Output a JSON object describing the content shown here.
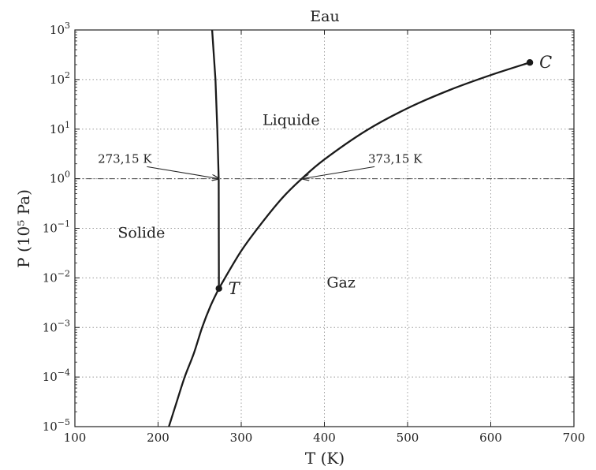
{
  "chart_data": {
    "type": "line",
    "title": "Eau",
    "xlabel": "T (K)",
    "ylabel": "P (10⁵ Pa)",
    "xlim": [
      100,
      700
    ],
    "ylim_log10": [
      -5,
      3
    ],
    "y_scale": "log",
    "grid": true,
    "x_ticks": [
      100,
      200,
      300,
      400,
      500,
      600,
      700
    ],
    "x_tick_labels": [
      "100",
      "200",
      "300",
      "400",
      "500",
      "600",
      "700"
    ],
    "y_ticks_exponents": [
      -5,
      -4,
      -3,
      -2,
      -1,
      0,
      1,
      2,
      3
    ],
    "y_tick_base": "10",
    "series": [
      {
        "kind": "fusion",
        "points": [
          [
            273.16,
            0.00612
          ],
          [
            272.9,
            1
          ],
          [
            271.2,
            10
          ],
          [
            269,
            100
          ],
          [
            265,
            1000
          ]
        ]
      },
      {
        "kind": "sublimation",
        "points": [
          [
            213,
            1e-05
          ],
          [
            222,
            3e-05
          ],
          [
            232,
            0.0001
          ],
          [
            243,
            0.0003
          ],
          [
            253,
            0.001
          ],
          [
            263,
            0.0027
          ],
          [
            273.16,
            0.00612
          ]
        ]
      },
      {
        "kind": "vaporisation",
        "points": [
          [
            273.16,
            0.00612
          ],
          [
            300,
            0.035
          ],
          [
            325,
            0.13
          ],
          [
            350,
            0.42
          ],
          [
            373.15,
            1.013
          ],
          [
            400,
            2.45
          ],
          [
            450,
            9.3
          ],
          [
            500,
            26.4
          ],
          [
            550,
            61
          ],
          [
            600,
            123
          ],
          [
            647,
            221
          ]
        ]
      }
    ],
    "reference_line": {
      "y": 1,
      "style": "dash-dot"
    },
    "points": [
      {
        "label": "T",
        "x": 273.16,
        "y": 0.00612
      },
      {
        "label": "C",
        "x": 647,
        "y": 221
      }
    ],
    "regions": [
      {
        "label": "Liquide",
        "x": 360,
        "y": 15
      },
      {
        "label": "Solide",
        "x": 180,
        "y": 0.08
      },
      {
        "label": "Gaz",
        "x": 420,
        "y": 0.008
      }
    ],
    "annotations": [
      {
        "text": "273,15 K",
        "target": [
          273.15,
          1
        ],
        "text_at": [
          160,
          2.1
        ]
      },
      {
        "text": "373,15 K",
        "target": [
          373.15,
          1
        ],
        "text_at": [
          485,
          2.1
        ]
      }
    ]
  }
}
